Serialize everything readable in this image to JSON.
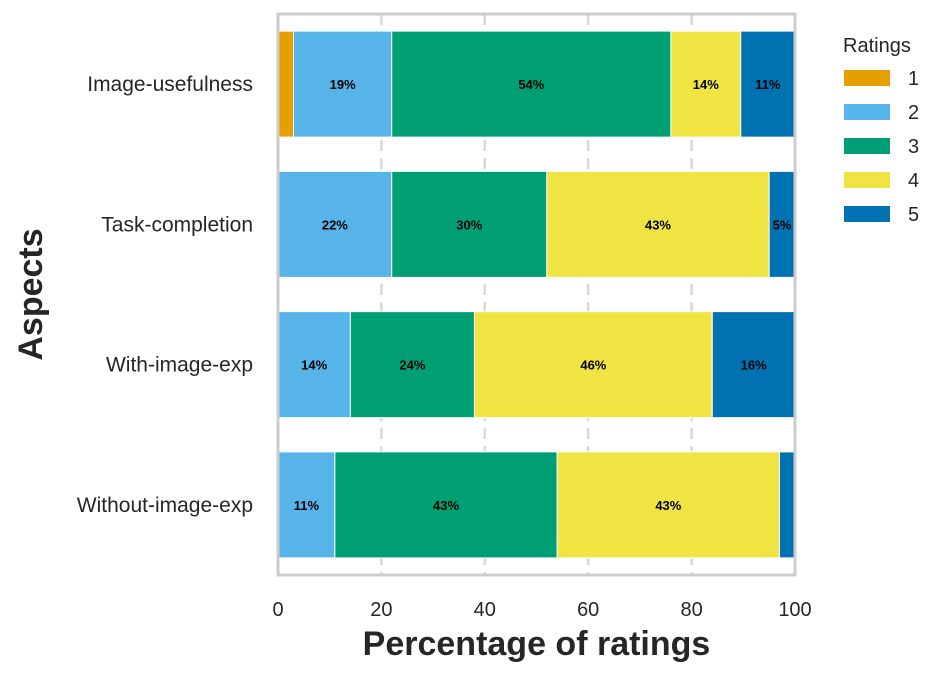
{
  "chart_data": {
    "type": "bar",
    "orientation": "horizontal",
    "stacked": true,
    "title": "",
    "xlabel": "Percentage of ratings",
    "ylabel": "Aspects",
    "xlim": [
      0,
      100
    ],
    "xticks": [
      0,
      20,
      40,
      60,
      80,
      100
    ],
    "grid": "vertical dashed",
    "legend": {
      "title": "Ratings",
      "placement": "top-right outside"
    },
    "categories": [
      "Image-usefulness",
      "Task-completion",
      "With-image-exp",
      "Without-image-exp"
    ],
    "series": [
      {
        "name": "1",
        "color": "#E69F00",
        "values": [
          3,
          0,
          0,
          0
        ],
        "labels": [
          "",
          "",
          "",
          ""
        ]
      },
      {
        "name": "2",
        "color": "#56B4E9",
        "values": [
          19,
          22,
          14,
          11
        ],
        "labels": [
          "19%",
          "22%",
          "14%",
          "11%"
        ]
      },
      {
        "name": "3",
        "color": "#009E73",
        "values": [
          54,
          30,
          24,
          43
        ],
        "labels": [
          "54%",
          "30%",
          "24%",
          "43%"
        ]
      },
      {
        "name": "4",
        "color": "#F0E442",
        "values": [
          13.5,
          43,
          46,
          43
        ],
        "labels": [
          "14%",
          "43%",
          "46%",
          "43%"
        ]
      },
      {
        "name": "5",
        "color": "#0072B2",
        "values": [
          10.5,
          5,
          16,
          3
        ],
        "labels": [
          "11%",
          "5%",
          "16%",
          ""
        ]
      }
    ]
  }
}
